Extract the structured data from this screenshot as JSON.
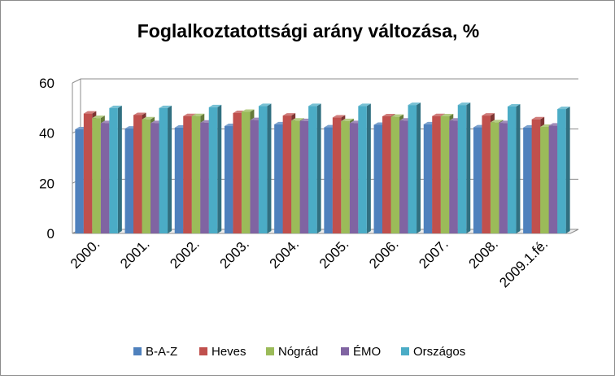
{
  "chart_data": {
    "type": "bar",
    "title": "Foglalkoztatottsági arány változása, %",
    "xlabel": "",
    "ylabel": "",
    "ylim": [
      0,
      60
    ],
    "yticks": [
      "0",
      "20",
      "40",
      "60"
    ],
    "grid": true,
    "legend_position": "bottom",
    "categories": [
      "2000.",
      "2001.",
      "2002.",
      "2003.",
      "2004.",
      "2005.",
      "2006.",
      "2007.",
      "2008.",
      "2009.1.fé."
    ],
    "series": [
      {
        "name": "B-A-Z",
        "color": "#4f81bd",
        "values": [
          41.5,
          41.8,
          42.2,
          42.8,
          43.5,
          42.3,
          43.3,
          43.5,
          42.3,
          42.2
        ]
      },
      {
        "name": "Heves",
        "color": "#c0504d",
        "values": [
          47.8,
          47.2,
          46.8,
          48.0,
          47.0,
          46.2,
          46.7,
          46.8,
          47.0,
          45.5
        ]
      },
      {
        "name": "Nógrád",
        "color": "#9bbb59",
        "values": [
          46.0,
          45.5,
          46.8,
          48.5,
          45.0,
          44.8,
          46.5,
          46.7,
          44.3,
          42.5
        ]
      },
      {
        "name": "ÉMO",
        "color": "#8064a2",
        "values": [
          44.0,
          44.0,
          44.2,
          45.2,
          44.8,
          44.0,
          45.0,
          45.0,
          44.0,
          43.0
        ]
      },
      {
        "name": "Országos",
        "color": "#4bacc6",
        "values": [
          50.0,
          50.0,
          50.3,
          50.8,
          50.8,
          50.8,
          51.2,
          51.2,
          50.6,
          49.6
        ]
      }
    ]
  }
}
